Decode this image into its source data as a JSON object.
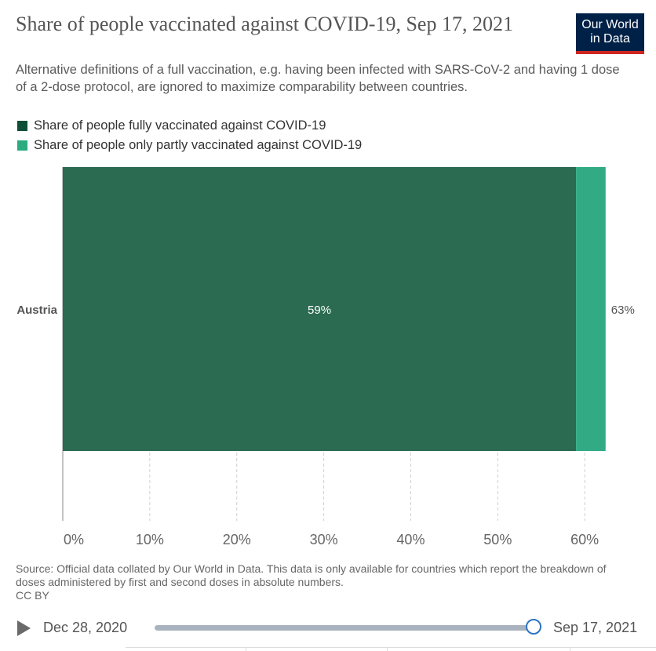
{
  "header": {
    "title": "Share of people vaccinated against COVID-19, Sep 17, 2021",
    "subtitle": "Alternative definitions of a full vaccination, e.g. having been infected with SARS-CoV-2 and having 1 dose of a 2-dose protocol, are ignored to maximize comparability between countries.",
    "logo_line1": "Our World",
    "logo_line2": "in Data"
  },
  "colors": {
    "fully": "#2a6b52",
    "partly": "#32ab85",
    "legend_fully": "#0f4f37",
    "legend_partly": "#2bab7f",
    "logo_bg": "#002147",
    "logo_accent": "#ce261e",
    "slider": "#2d74c4"
  },
  "chart_data": {
    "type": "bar",
    "orientation": "horizontal",
    "stacked": true,
    "categories": [
      "Austria"
    ],
    "series": [
      {
        "name": "Share of people fully vaccinated against COVID-19",
        "values": [
          59
        ],
        "label": "59%"
      },
      {
        "name": "Share of people only partly vaccinated against COVID-19",
        "values": [
          3.4
        ]
      }
    ],
    "total_labels": [
      "63%"
    ],
    "x_ticks": [
      "0%",
      "10%",
      "20%",
      "30%",
      "40%",
      "50%",
      "60%"
    ],
    "xlim": [
      0,
      62.6
    ],
    "grid": true,
    "legend_position": "top-left"
  },
  "footer": {
    "sources": "Source: Official data collated by Our World in Data. This data is only available for countries which report the breakdown of doses administered by first and second doses in absolute numbers.",
    "license": "CC BY"
  },
  "timeline": {
    "start_date": "Dec 28, 2020",
    "end_date": "Sep 17, 2021",
    "position": 1.0
  }
}
